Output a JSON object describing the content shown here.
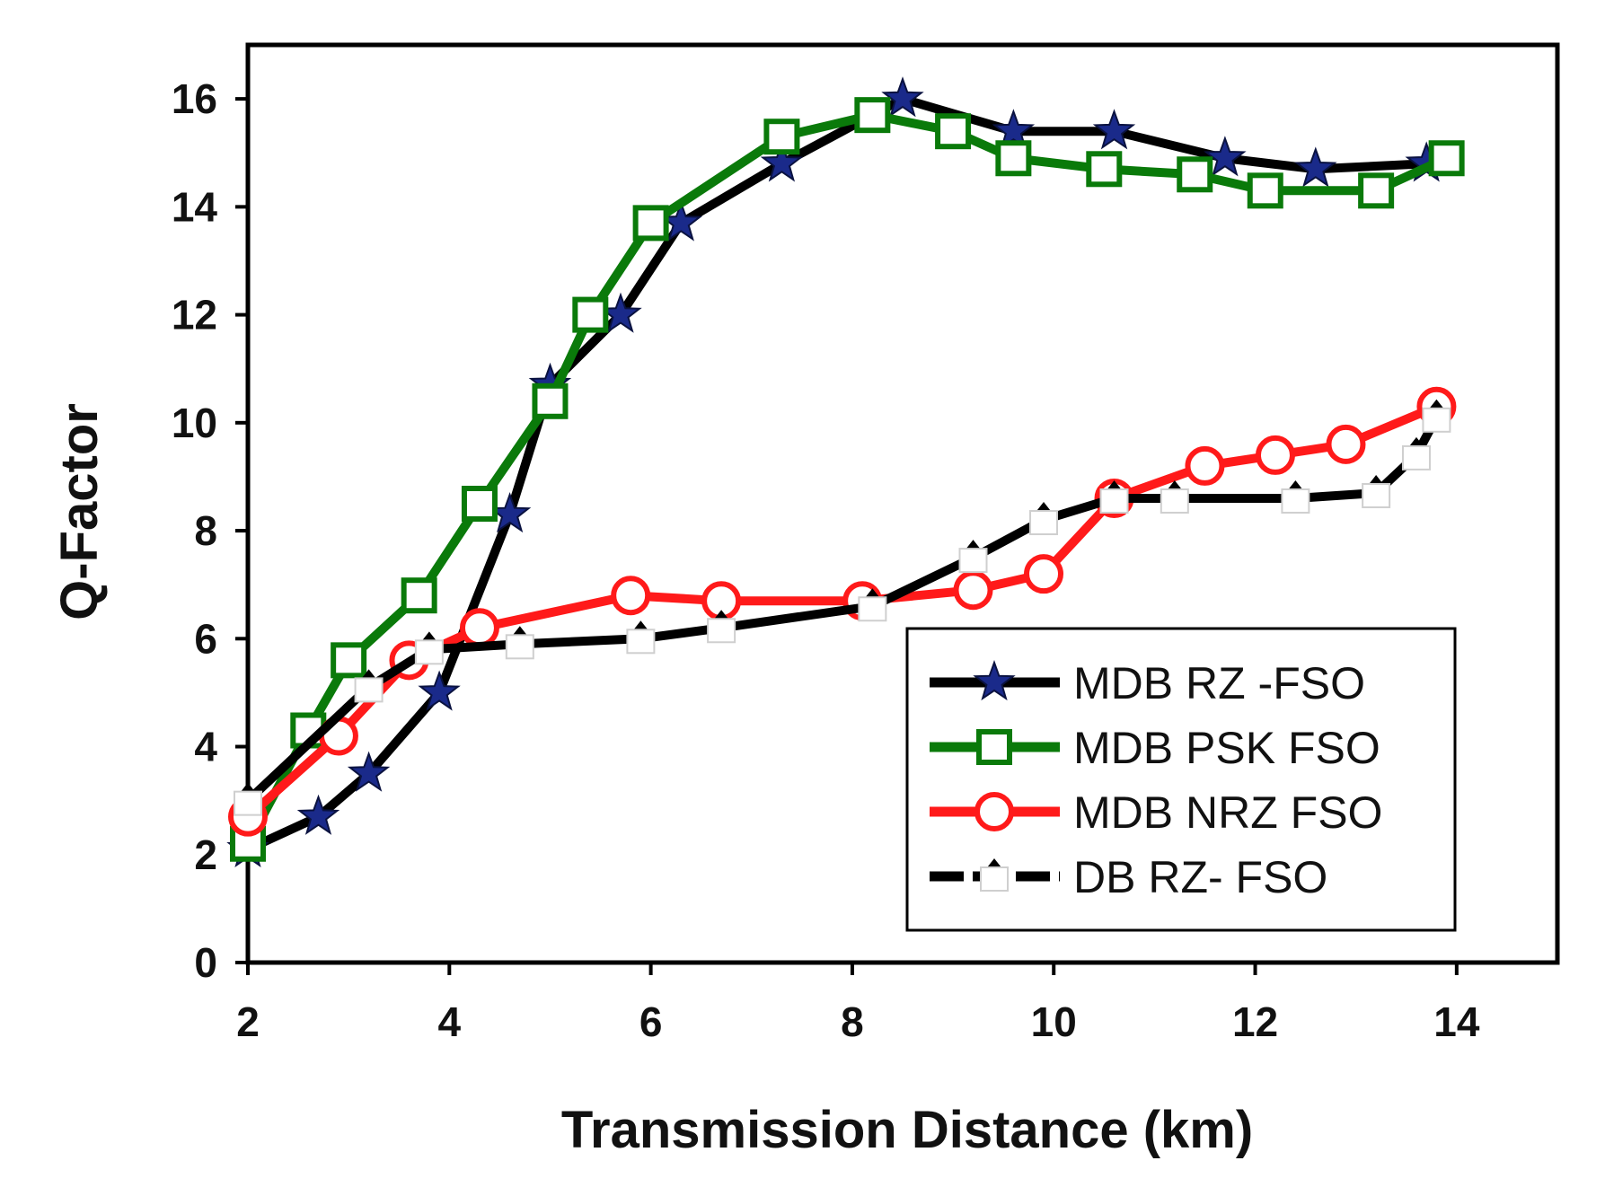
{
  "chart_data": {
    "type": "line",
    "title": "",
    "xlabel": "Transmission Distance (km)",
    "ylabel": "Q-Factor",
    "xlim": [
      2,
      15
    ],
    "ylim": [
      0,
      17
    ],
    "xticks": [
      2,
      4,
      6,
      8,
      10,
      12,
      14
    ],
    "yticks": [
      0,
      2,
      4,
      6,
      8,
      10,
      12,
      14,
      16
    ],
    "grid": false,
    "legend_position": "bottom-right",
    "series": [
      {
        "name": "MDB RZ -FSO",
        "color": "#000000",
        "marker": "star",
        "marker_color": "#1a2a8a",
        "x": [
          2.0,
          2.7,
          3.2,
          3.9,
          4.6,
          5.0,
          5.7,
          6.3,
          7.3,
          8.5,
          9.6,
          10.6,
          11.7,
          12.6,
          13.7
        ],
        "y": [
          2.1,
          2.7,
          3.5,
          5.0,
          8.3,
          10.7,
          12.0,
          13.7,
          14.8,
          16.0,
          15.4,
          15.4,
          14.9,
          14.7,
          14.8
        ]
      },
      {
        "name": "MDB PSK FSO",
        "color": "#0a7a0a",
        "marker": "square",
        "x": [
          2.0,
          2.6,
          3.0,
          3.7,
          4.3,
          5.0,
          5.4,
          6.0,
          7.3,
          8.2,
          9.0,
          9.6,
          10.5,
          11.4,
          12.1,
          13.2,
          13.9
        ],
        "y": [
          2.2,
          4.3,
          5.6,
          6.8,
          8.5,
          10.4,
          12.0,
          13.7,
          15.3,
          15.7,
          15.4,
          14.9,
          14.7,
          14.6,
          14.3,
          14.3,
          14.9
        ]
      },
      {
        "name": "MDB NRZ FSO",
        "color": "#ff1a1a",
        "marker": "circle",
        "x": [
          2.0,
          2.9,
          3.6,
          4.3,
          5.8,
          6.7,
          8.1,
          9.2,
          9.9,
          10.6,
          11.5,
          12.2,
          12.9,
          13.8
        ],
        "y": [
          2.7,
          4.2,
          5.6,
          6.2,
          6.8,
          6.7,
          6.7,
          6.9,
          7.2,
          8.6,
          9.2,
          9.4,
          9.6,
          10.3
        ]
      },
      {
        "name": "DB RZ- FSO",
        "color": "#000000",
        "marker": "triangle",
        "x": [
          2.0,
          3.2,
          3.8,
          4.7,
          5.9,
          6.7,
          8.2,
          9.2,
          9.9,
          10.6,
          11.2,
          12.4,
          13.2,
          13.6,
          13.8
        ],
        "y": [
          3.0,
          5.1,
          5.8,
          5.9,
          6.0,
          6.2,
          6.6,
          7.5,
          8.2,
          8.6,
          8.6,
          8.6,
          8.7,
          9.4,
          10.1
        ]
      }
    ]
  }
}
